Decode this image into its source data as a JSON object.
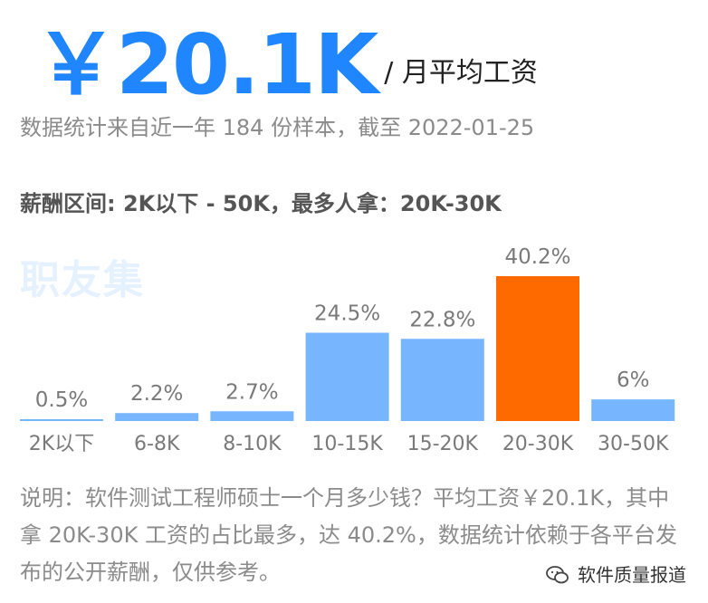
{
  "hero": {
    "value": "￥20.1K",
    "unit": "/ 月平均工资"
  },
  "source": "数据统计来自近一年 184 份样本，截至 2022-01-25",
  "range": "薪酬区间: 2K以下 - 50K，最多人拿：20K-30K",
  "watermark": "职友集",
  "note": "说明：软件测试工程师硕士一个月多少钱？平均工资￥20.1K，其中拿 20K-30K 工资的占比最多，达 40.2%，数据统计依赖于各平台发布的公开薪酬，仅供参考。",
  "brand": {
    "icon": "wechat-icon",
    "text": "软件质量报道"
  },
  "colors": {
    "accent": "#1f86ff",
    "bar": "#77b5ff",
    "highlight": "#ff6a00",
    "muted_text": "#8b8b8b"
  },
  "chart_data": {
    "type": "bar",
    "title": "",
    "xlabel": "",
    "ylabel": "",
    "ylim": [
      0,
      40.2
    ],
    "categories": [
      "2K以下",
      "6-8K",
      "8-10K",
      "10-15K",
      "15-20K",
      "20-30K",
      "30-50K"
    ],
    "values": [
      0.5,
      2.2,
      2.7,
      24.5,
      22.8,
      40.2,
      6
    ],
    "value_labels": [
      "0.5%",
      "2.2%",
      "2.7%",
      "24.5%",
      "22.8%",
      "40.2%",
      "6%"
    ],
    "highlight_index": 5,
    "grid": false,
    "legend": "none"
  }
}
